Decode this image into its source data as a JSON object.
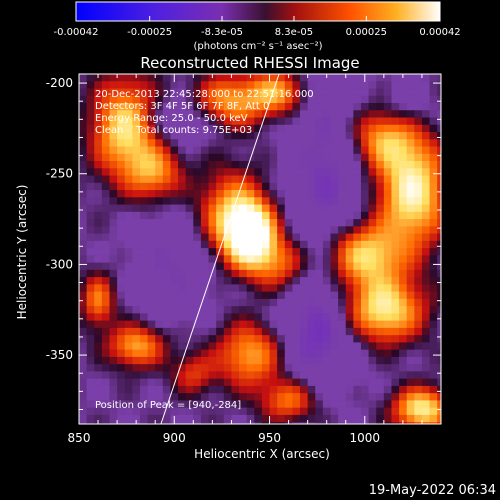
{
  "colorbar": {
    "tick_labels": [
      "-0.00042",
      "-0.00025",
      "-8.3e-05",
      "8.3e-05",
      "0.00025",
      "0.00042"
    ],
    "tick_values": [
      -0.00042,
      -0.00025,
      -8.3e-05,
      8.3e-05,
      0.00025,
      0.00042
    ],
    "range": [
      -0.00042,
      0.00042
    ],
    "units_label": "(photons cm⁻² s⁻¹ asec⁻²)"
  },
  "chart_data": {
    "type": "heatmap",
    "title": "Reconstructed RHESSI Image",
    "xlabel": "Heliocentric X (arcsec)",
    "ylabel": "Heliocentric Y (arcsec)",
    "xlim": [
      850,
      1040
    ],
    "ylim": [
      -388,
      -195
    ],
    "x_ticks": [
      850,
      900,
      950,
      1000
    ],
    "x_tick_labels": [
      "850",
      "900",
      "950",
      "1000"
    ],
    "y_ticks": [
      -200,
      -250,
      -300,
      -350
    ],
    "y_tick_labels": [
      "-200",
      "-250",
      "-300",
      "-350"
    ],
    "info_lines": [
      "20-Dec-2013 22:45:28.000 to 22:51:16.000",
      "Detectors: 3F 4F 5F 6F 7F 8F, Att 0",
      "Energy Range: 25.0 - 50.0 keV",
      "Clean    Total counts: 9.75E+03"
    ],
    "peak_label": "Position of Peak = [940,-284]",
    "peak": [
      940,
      -284
    ],
    "limb_line": [
      [
        893,
        -388
      ],
      [
        955,
        -195
      ]
    ],
    "colors": {
      "background": "#000000",
      "text": "#ffffff",
      "neg_min": "#0000ff",
      "neg_mid": "#6a1fd0",
      "purple": "#7a3fa8",
      "red": "#c81010",
      "orange": "#ff6a00",
      "yellow": "#ffe060",
      "white": "#ffffff"
    },
    "blobs": [
      {
        "x": 940,
        "y": -284,
        "sx": 9,
        "sy": 12,
        "v": 1.0
      },
      {
        "x": 930,
        "y": -272,
        "sx": 12,
        "sy": 16,
        "v": 0.55
      },
      {
        "x": 955,
        "y": -300,
        "sx": 10,
        "sy": 10,
        "v": 0.4
      },
      {
        "x": 1025,
        "y": -260,
        "sx": 12,
        "sy": 20,
        "v": 0.8
      },
      {
        "x": 1010,
        "y": -230,
        "sx": 12,
        "sy": 12,
        "v": 0.55
      },
      {
        "x": 1000,
        "y": -295,
        "sx": 14,
        "sy": 12,
        "v": 0.7
      },
      {
        "x": 1010,
        "y": -325,
        "sx": 14,
        "sy": 12,
        "v": 0.75
      },
      {
        "x": 1030,
        "y": -380,
        "sx": 10,
        "sy": 8,
        "v": 0.75
      },
      {
        "x": 875,
        "y": -225,
        "sx": 12,
        "sy": 18,
        "v": 0.75
      },
      {
        "x": 890,
        "y": -250,
        "sx": 10,
        "sy": 10,
        "v": 0.45
      },
      {
        "x": 930,
        "y": -210,
        "sx": 14,
        "sy": 10,
        "v": 0.55
      },
      {
        "x": 955,
        "y": -205,
        "sx": 10,
        "sy": 8,
        "v": 0.5
      },
      {
        "x": 940,
        "y": -350,
        "sx": 12,
        "sy": 12,
        "v": 0.55
      },
      {
        "x": 960,
        "y": -375,
        "sx": 10,
        "sy": 8,
        "v": 0.45
      },
      {
        "x": 880,
        "y": -345,
        "sx": 10,
        "sy": 8,
        "v": 0.55
      },
      {
        "x": 860,
        "y": -320,
        "sx": 6,
        "sy": 10,
        "v": 0.45
      },
      {
        "x": 910,
        "y": -360,
        "sx": 8,
        "sy": 8,
        "v": 0.3
      },
      {
        "x": 900,
        "y": -220,
        "sx": 16,
        "sy": 10,
        "v": -0.25
      },
      {
        "x": 980,
        "y": -250,
        "sx": 14,
        "sy": 40,
        "v": -0.3
      },
      {
        "x": 900,
        "y": -300,
        "sx": 14,
        "sy": 20,
        "v": -0.25
      },
      {
        "x": 975,
        "y": -340,
        "sx": 14,
        "sy": 20,
        "v": -0.35
      },
      {
        "x": 1020,
        "y": -215,
        "sx": 10,
        "sy": 10,
        "v": -0.2
      }
    ]
  },
  "footer": {
    "date_stamp": "19-May-2022 06:34"
  }
}
